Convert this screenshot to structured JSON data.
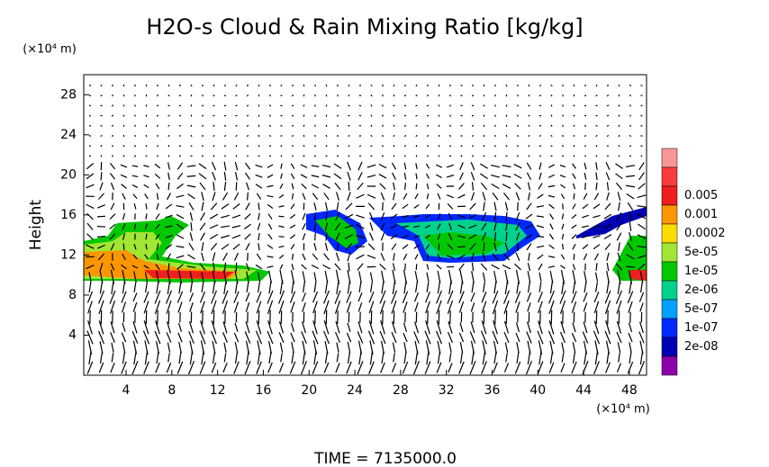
{
  "chart_data": {
    "type": "field",
    "title": "H2O-s Cloud & Rain Mixing Ratio [kg/kg]",
    "x_unit": "(×10⁴ m)",
    "y_unit": "(×10⁴ m)",
    "y_label": "Height",
    "footer": "TIME = 7135000.0",
    "xlim": [
      0.3,
      49.5
    ],
    "ylim": [
      0,
      30
    ],
    "xticks": [
      4,
      8,
      12,
      16,
      20,
      24,
      28,
      32,
      36,
      40,
      44,
      48
    ],
    "yticks": [
      4,
      8,
      12,
      16,
      20,
      24,
      28
    ],
    "colorbar": {
      "colors": [
        "#fa9696",
        "#fa3c3c",
        "#f01e1e",
        "#fa9600",
        "#fadc00",
        "#a0e632",
        "#00c800",
        "#00d28c",
        "#00a0ff",
        "#0028ff",
        "#0000b4",
        "#8c00aa"
      ],
      "labels": [
        "0.005",
        "0.001",
        "0.0002",
        "5e-05",
        "1e-05",
        "2e-06",
        "5e-07",
        "1e-07",
        "2e-08"
      ]
    }
  }
}
